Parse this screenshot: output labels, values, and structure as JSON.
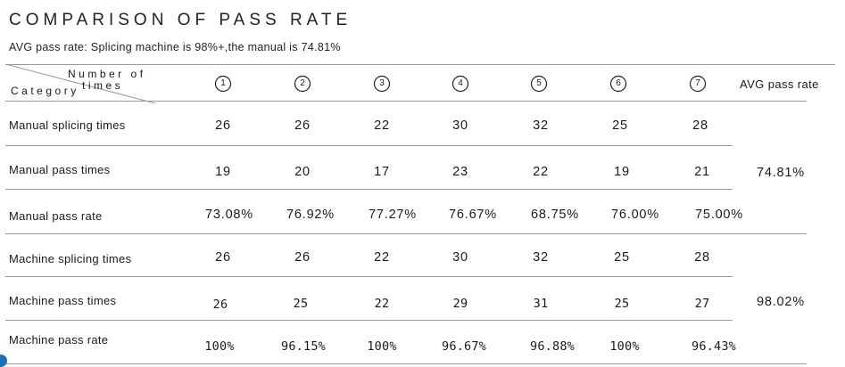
{
  "title": "COMPARISON OF PASS RATE",
  "subtitle": "AVG pass rate: Splicing machine is 98%+,the manual is 74.81%",
  "header": {
    "corner_top": "Number of",
    "corner_mid": "times",
    "corner_bottom": "Category",
    "columns": [
      "1",
      "2",
      "3",
      "4",
      "5",
      "6",
      "7"
    ],
    "avg": "AVG pass rate"
  },
  "rows": [
    {
      "label": "Manual splicing times",
      "values": [
        "26",
        "26",
        "22",
        "30",
        "32",
        "25",
        "28"
      ]
    },
    {
      "label": "Manual pass times",
      "values": [
        "19",
        "20",
        "17",
        "23",
        "22",
        "19",
        "21"
      ]
    },
    {
      "label": "Manual pass rate",
      "values": [
        "73.08%",
        "76.92%",
        "77.27%",
        "76.67%",
        "68.75%",
        "76.00%",
        "75.00%"
      ]
    },
    {
      "label": "Machine splicing times",
      "values": [
        "26",
        "26",
        "22",
        "30",
        "32",
        "25",
        "28"
      ]
    },
    {
      "label": "Machine pass times",
      "values": [
        "26",
        "25",
        "22",
        "29",
        "31",
        "25",
        "27"
      ]
    },
    {
      "label": "Machine pass rate",
      "values": [
        "100%",
        "96.15%",
        "100%",
        "96.67%",
        "96.88%",
        "100%",
        "96.43%"
      ]
    }
  ],
  "avg": {
    "manual": "74.81%",
    "machine": "98.02%"
  }
}
